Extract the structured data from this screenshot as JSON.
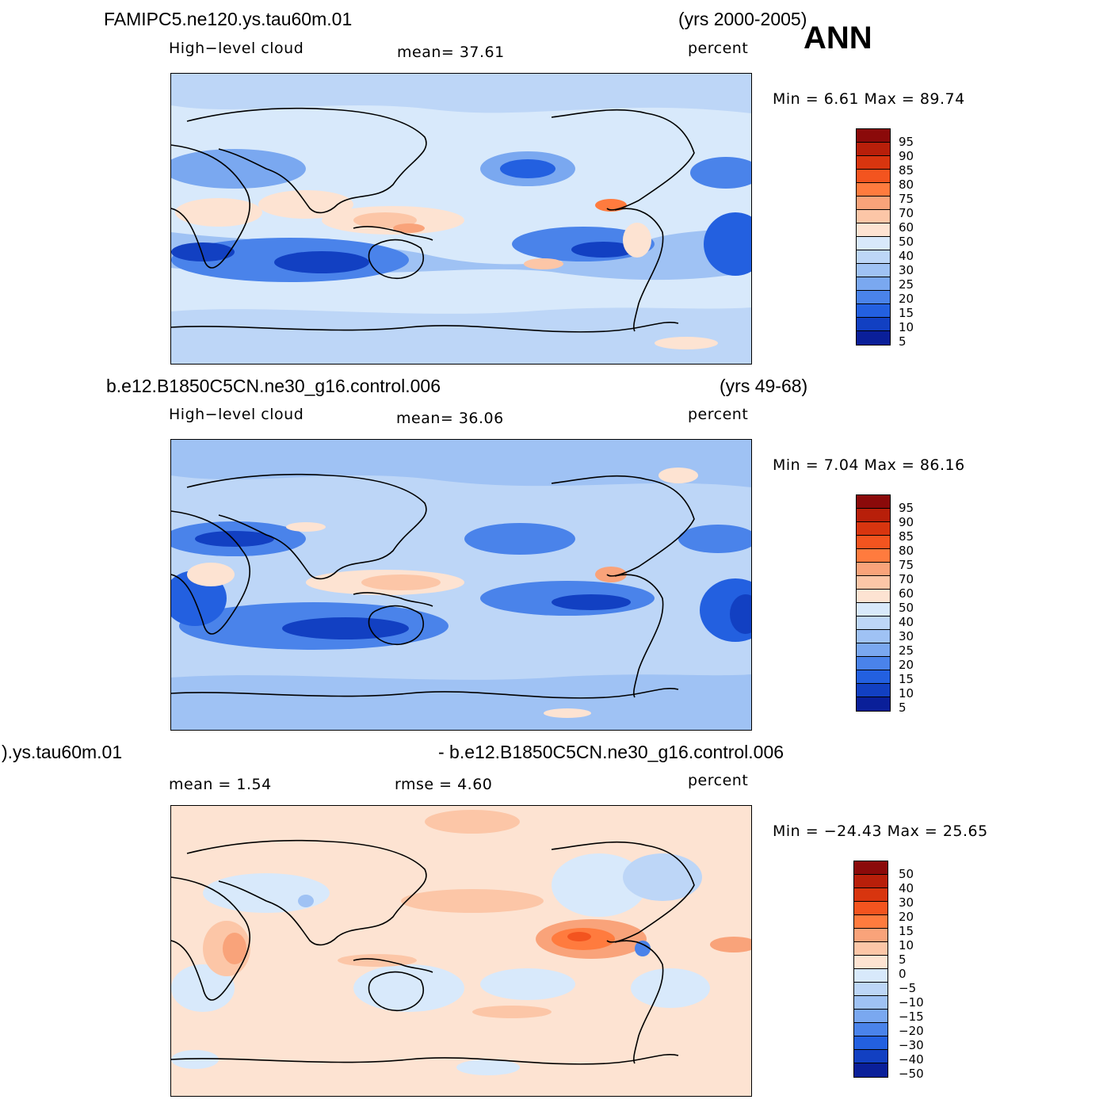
{
  "header": {
    "season": "ANN"
  },
  "panels": [
    {
      "case_left": "FAMIPC5.ne120.ys.tau60m.01",
      "case_right": "(yrs 2000-2005)",
      "variable": "High−level  cloud",
      "stat1": "mean=   37.61",
      "units": "percent",
      "minmax": "Min  =     6.61  Max  =    89.74"
    },
    {
      "case_left": "b.e12.B1850C5CN.ne30_g16.control.006",
      "case_right": "(yrs 49-68)",
      "variable": "High−level  cloud",
      "stat1": "mean=   36.06",
      "units": "percent",
      "minmax": "Min  =     7.04  Max  =    86.16"
    },
    {
      "case_left": ").ys.tau60m.01",
      "case_right": "- b.e12.B1850C5CN.ne30_g16.control.006",
      "stat0": "mean  =     1.54",
      "stat1": "rmse  =     4.60",
      "units": "percent",
      "minmax": "Min  =  −24.43  Max  =    25.65"
    }
  ],
  "colorbar_abs": {
    "labels": [
      "95",
      "90",
      "85",
      "80",
      "75",
      "70",
      "60",
      "50",
      "40",
      "30",
      "25",
      "20",
      "15",
      "10",
      "5"
    ],
    "colors": [
      "#8b0a0a",
      "#b81f0a",
      "#d8350f",
      "#f3541f",
      "#ff7b3e",
      "#f9a37a",
      "#fcc6a7",
      "#fde3d2",
      "#d8e9fb",
      "#bdd6f7",
      "#9fc2f4",
      "#7aa8f0",
      "#4a83ea",
      "#2360e0",
      "#1240c2",
      "#0a1f99"
    ]
  },
  "colorbar_diff": {
    "labels": [
      "50",
      "40",
      "30",
      "20",
      "15",
      "10",
      "5",
      "0",
      "−5",
      "−10",
      "−15",
      "−20",
      "−30",
      "−40",
      "−50"
    ],
    "colors": [
      "#8b0a0a",
      "#b81f0a",
      "#d8350f",
      "#f3541f",
      "#ff7b3e",
      "#f9a37a",
      "#fcc6a7",
      "#fde3d2",
      "#d8e9fb",
      "#bdd6f7",
      "#9fc2f4",
      "#7aa8f0",
      "#4a83ea",
      "#2360e0",
      "#1240c2",
      "#0a1f99"
    ]
  }
}
